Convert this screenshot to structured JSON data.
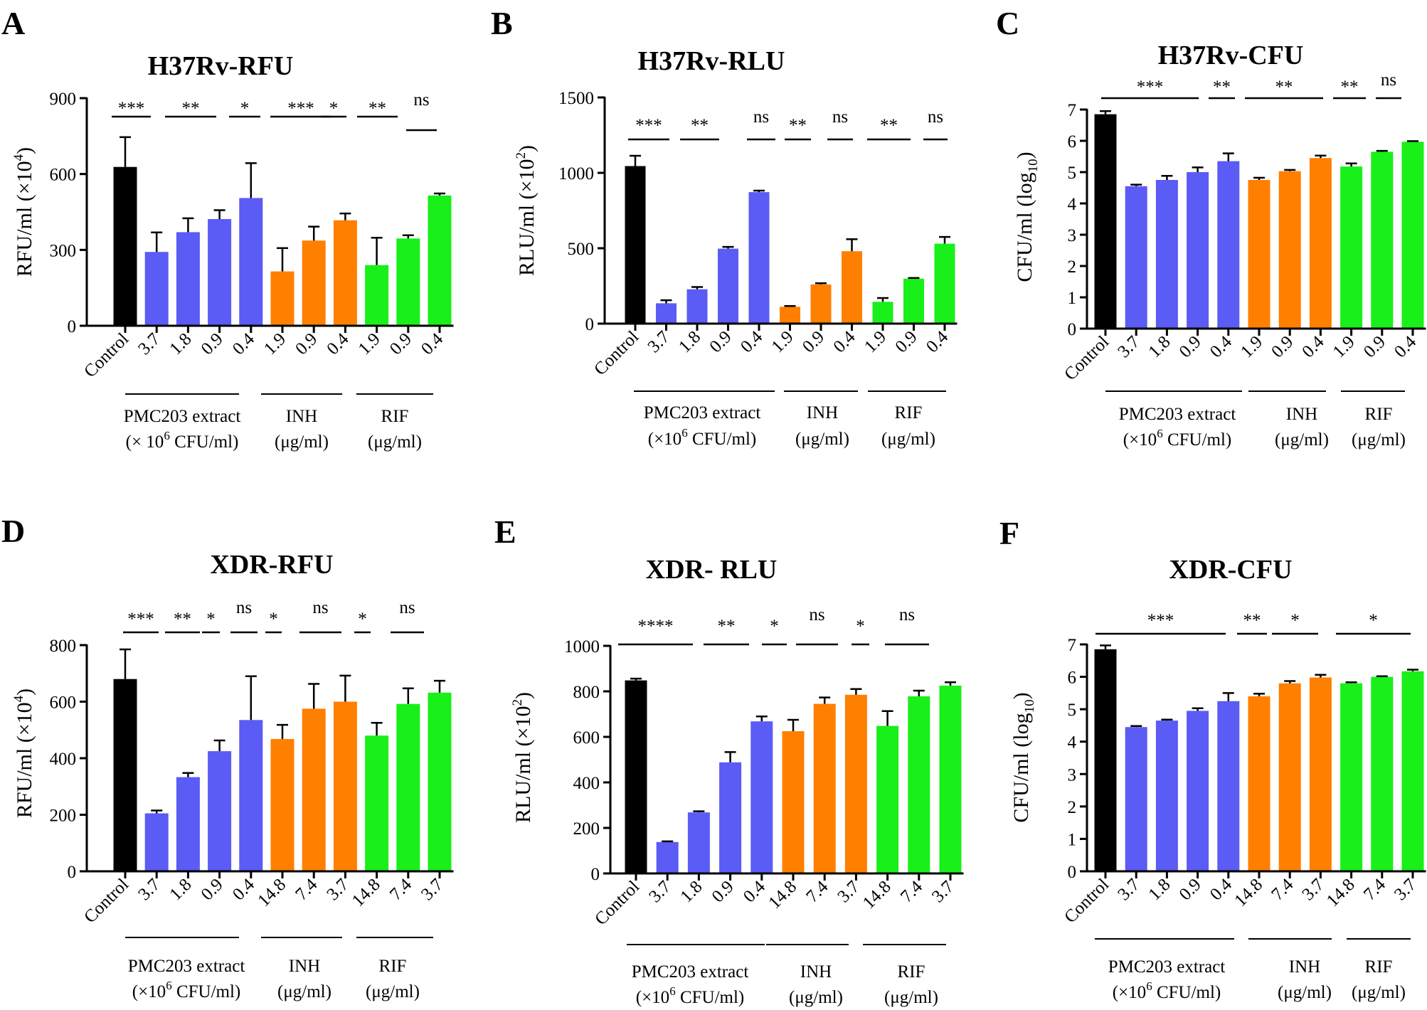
{
  "figure": {
    "colors": {
      "control": "#000000",
      "pmc203": "#5b5bf5",
      "inh": "#ff7f00",
      "rif": "#19ef19",
      "axis": "#000000"
    }
  },
  "chart_data": [
    {
      "panel": "A",
      "type": "bar",
      "title": "H37Rv-RFU",
      "ylabel": "RFU/ml (×10^4)",
      "ylabel_parts": {
        "prefix": "RFU/ml (×10",
        "sup": "4",
        "suffix": ")"
      },
      "ylim": [
        0,
        900
      ],
      "yticks": [
        0,
        300,
        600,
        900
      ],
      "categories": [
        "Control",
        "3.7",
        "1.8",
        "0.9",
        "0.4",
        "1.9",
        "0.9",
        "0.4",
        "1.9",
        "0.9",
        "0.4"
      ],
      "groups": [
        "control",
        "pmc203",
        "pmc203",
        "pmc203",
        "pmc203",
        "inh",
        "inh",
        "inh",
        "rif",
        "rif",
        "rif"
      ],
      "values": [
        628,
        292,
        370,
        422,
        505,
        215,
        337,
        417,
        240,
        345,
        515
      ],
      "errors": [
        118,
        77,
        55,
        35,
        138,
        92,
        55,
        27,
        108,
        13,
        8
      ],
      "significance": [
        {
          "label": "***",
          "from": 0,
          "to": 0
        },
        {
          "label": "**",
          "from": 1,
          "to": 1
        },
        {
          "label": "*",
          "from": 2,
          "to": 2
        },
        {
          "label": "***",
          "from": 3,
          "to": 3
        },
        {
          "label": "*",
          "from": 4,
          "to": 4
        },
        {
          "label": "**",
          "from": 5,
          "to": 5
        },
        {
          "label": "ns",
          "from": 6,
          "to": 6
        }
      ],
      "group_labels": [
        {
          "line1": "PMC203 extract",
          "line2": "(× 10^6 CFU/ml)",
          "line2_parts": {
            "prefix": "(× 10",
            "sup": "6",
            "suffix": " CFU/ml)"
          }
        },
        {
          "line1": "INH",
          "line2": "(μg/ml)"
        },
        {
          "line1": "RIF",
          "line2": "(μg/ml)"
        }
      ]
    },
    {
      "panel": "B",
      "type": "bar",
      "title": "H37Rv-RLU",
      "ylabel": "RLU/ml (×10^2)",
      "ylabel_parts": {
        "prefix": "RLU/ml (×10",
        "sup": "2",
        "suffix": ")"
      },
      "ylim": [
        0,
        1500
      ],
      "yticks": [
        0,
        500,
        1000,
        1500
      ],
      "categories": [
        "Control",
        "3.7",
        "1.8",
        "0.9",
        "0.4",
        "1.9",
        "0.9",
        "0.4",
        "1.9",
        "0.9",
        "0.4"
      ],
      "groups": [
        "control",
        "pmc203",
        "pmc203",
        "pmc203",
        "pmc203",
        "inh",
        "inh",
        "inh",
        "rif",
        "rif",
        "rif"
      ],
      "values": [
        1045,
        135,
        228,
        497,
        872,
        112,
        260,
        480,
        145,
        298,
        530
      ],
      "errors": [
        68,
        20,
        15,
        12,
        10,
        5,
        8,
        80,
        25,
        5,
        45
      ],
      "significance": [
        {
          "label": "***",
          "from": 0,
          "to": 0
        },
        {
          "label": "**",
          "from": 1,
          "to": 1
        },
        {
          "label": "ns",
          "from": 2,
          "to": 2
        },
        {
          "label": "**",
          "from": 3,
          "to": 3
        },
        {
          "label": "ns",
          "from": 4,
          "to": 4
        },
        {
          "label": "**",
          "from": 5,
          "to": 5
        },
        {
          "label": "ns",
          "from": 6,
          "to": 6
        }
      ],
      "group_labels": [
        {
          "line1": "PMC203 extract",
          "line2": "(×10^6 CFU/ml)",
          "line2_parts": {
            "prefix": "(×10",
            "sup": "6",
            "suffix": " CFU/ml)"
          }
        },
        {
          "line1": "INH",
          "line2": "(μg/ml)"
        },
        {
          "line1": "RIF",
          "line2": "(μg/ml)"
        }
      ]
    },
    {
      "panel": "C",
      "type": "bar",
      "title": "H37Rv-CFU",
      "ylabel": "CFU/ml (log10)",
      "ylabel_parts": {
        "prefix": "CFU/ml (log",
        "sub": "10",
        "suffix": ")"
      },
      "ylim": [
        0,
        7
      ],
      "yticks": [
        0,
        1,
        2,
        3,
        4,
        5,
        6,
        7
      ],
      "categories": [
        "Control",
        "3.7",
        "1.8",
        "0.9",
        "0.4",
        "1.9",
        "0.9",
        "0.4",
        "1.9",
        "0.9",
        "0.4"
      ],
      "groups": [
        "control",
        "pmc203",
        "pmc203",
        "pmc203",
        "pmc203",
        "inh",
        "inh",
        "inh",
        "rif",
        "rif",
        "rif"
      ],
      "values": [
        6.85,
        4.55,
        4.75,
        5.0,
        5.35,
        4.75,
        5.03,
        5.45,
        5.18,
        5.65,
        5.97
      ],
      "errors": [
        0.1,
        0.05,
        0.13,
        0.15,
        0.25,
        0.07,
        0.04,
        0.08,
        0.1,
        0.03,
        0.02
      ],
      "significance": [
        {
          "label": "***",
          "from": 0,
          "to": 0
        },
        {
          "label": "**",
          "from": 1,
          "to": 1
        },
        {
          "label": "**",
          "from": 2,
          "to": 2
        },
        {
          "label": "**",
          "from": 3,
          "to": 3
        },
        {
          "label": "ns",
          "from": 4,
          "to": 4
        }
      ],
      "group_labels": [
        {
          "line1": "PMC203 extract",
          "line2": "(×10^6 CFU/ml)",
          "line2_parts": {
            "prefix": "(×10",
            "sup": "6",
            "suffix": " CFU/ml)"
          }
        },
        {
          "line1": "INH",
          "line2": "(μg/ml)"
        },
        {
          "line1": "RIF",
          "line2": "(μg/ml)"
        }
      ]
    },
    {
      "panel": "D",
      "type": "bar",
      "title": "XDR-RFU",
      "ylabel": "RFU/ml (×10^4)",
      "ylabel_parts": {
        "prefix": "RFU/ml (×10",
        "sup": "4",
        "suffix": ")"
      },
      "ylim": [
        0,
        800
      ],
      "yticks": [
        0,
        200,
        400,
        600,
        800
      ],
      "categories": [
        "Control",
        "3.7",
        "1.8",
        "0.9",
        "0.4",
        "14.8",
        "7.4",
        "3.7",
        "14.8",
        "7.4",
        "3.7"
      ],
      "groups": [
        "control",
        "pmc203",
        "pmc203",
        "pmc203",
        "pmc203",
        "inh",
        "inh",
        "inh",
        "rif",
        "rif",
        "rif"
      ],
      "values": [
        680,
        205,
        333,
        425,
        535,
        468,
        575,
        600,
        480,
        592,
        632
      ],
      "errors": [
        105,
        10,
        15,
        38,
        155,
        50,
        88,
        92,
        45,
        55,
        42
      ],
      "significance": [
        {
          "label": "***",
          "from": 0,
          "to": 0
        },
        {
          "label": "**",
          "from": 1,
          "to": 1
        },
        {
          "label": "*",
          "from": 2,
          "to": 2
        },
        {
          "label": "ns",
          "from": 3,
          "to": 3
        },
        {
          "label": "*",
          "from": 4,
          "to": 4
        },
        {
          "label": "ns",
          "from": 5,
          "to": 5
        },
        {
          "label": "*",
          "from": 6,
          "to": 6
        },
        {
          "label": "ns",
          "from": 7,
          "to": 7
        }
      ],
      "group_labels": [
        {
          "line1": "PMC203 extract",
          "line2": "(×10^6 CFU/ml)",
          "line2_parts": {
            "prefix": "(×10",
            "sup": "6",
            "suffix": " CFU/ml)"
          }
        },
        {
          "line1": "INH",
          "line2": "(μg/ml)"
        },
        {
          "line1": "RIF",
          "line2": "(μg/ml)"
        }
      ]
    },
    {
      "panel": "E",
      "type": "bar",
      "title": "XDR- RLU",
      "ylabel": "RLU/ml (×10^2)",
      "ylabel_parts": {
        "prefix": "RLU/ml (×10",
        "sup": "2",
        "suffix": ")"
      },
      "ylim": [
        0,
        1000
      ],
      "yticks": [
        0,
        200,
        400,
        600,
        800,
        1000
      ],
      "categories": [
        "Control",
        "3.7",
        "1.8",
        "0.9",
        "0.4",
        "14.8",
        "7.4",
        "3.7",
        "14.8",
        "7.4",
        "3.7"
      ],
      "groups": [
        "control",
        "pmc203",
        "pmc203",
        "pmc203",
        "pmc203",
        "inh",
        "inh",
        "inh",
        "rif",
        "rif",
        "rif"
      ],
      "values": [
        848,
        138,
        268,
        488,
        668,
        625,
        745,
        785,
        648,
        778,
        825
      ],
      "errors": [
        8,
        3,
        5,
        45,
        22,
        50,
        28,
        25,
        65,
        25,
        15
      ],
      "significance": [
        {
          "label": "****",
          "from": 0,
          "to": 0
        },
        {
          "label": "**",
          "from": 1,
          "to": 1
        },
        {
          "label": "*",
          "from": 2,
          "to": 2
        },
        {
          "label": "ns",
          "from": 3,
          "to": 3
        },
        {
          "label": "*",
          "from": 4,
          "to": 4
        },
        {
          "label": "ns",
          "from": 5,
          "to": 5
        }
      ],
      "group_labels": [
        {
          "line1": "PMC203 extract",
          "line2": "(×10^6 CFU/ml)",
          "line2_parts": {
            "prefix": "(×10",
            "sup": "6",
            "suffix": " CFU/ml)"
          }
        },
        {
          "line1": "INH",
          "line2": "(μg/ml)"
        },
        {
          "line1": "RIF",
          "line2": "(μg/ml)"
        }
      ]
    },
    {
      "panel": "F",
      "type": "bar",
      "title": "XDR-CFU",
      "ylabel": "CFU/ml (log10)",
      "ylabel_parts": {
        "prefix": "CFU/ml (log",
        "sub": "10",
        "suffix": ")"
      },
      "ylim": [
        0,
        7
      ],
      "yticks": [
        0,
        1,
        2,
        3,
        4,
        5,
        6,
        7
      ],
      "categories": [
        "Control",
        "3.7",
        "1.8",
        "0.9",
        "0.4",
        "14.8",
        "7.4",
        "3.7",
        "14.8",
        "7.4",
        "3.7"
      ],
      "groups": [
        "control",
        "pmc203",
        "pmc203",
        "pmc203",
        "pmc203",
        "inh",
        "inh",
        "inh",
        "rif",
        "rif",
        "rif"
      ],
      "values": [
        6.85,
        4.45,
        4.65,
        4.95,
        5.25,
        5.4,
        5.8,
        5.98,
        5.8,
        6.0,
        6.17
      ],
      "errors": [
        0.12,
        0.03,
        0.03,
        0.08,
        0.25,
        0.08,
        0.07,
        0.08,
        0.03,
        0.02,
        0.05
      ],
      "significance": [
        {
          "label": "***",
          "from": 0,
          "to": 0
        },
        {
          "label": "**",
          "from": 1,
          "to": 1
        },
        {
          "label": "*",
          "from": 2,
          "to": 2
        },
        {
          "label": "*",
          "from": 3,
          "to": 3
        }
      ],
      "group_labels": [
        {
          "line1": "PMC203 extract",
          "line2": "(×10^6 CFU/ml)",
          "line2_parts": {
            "prefix": "(×10",
            "sup": "6",
            "suffix": " CFU/ml)"
          }
        },
        {
          "line1": "INH",
          "line2": "(μg/ml)"
        },
        {
          "line1": "RIF",
          "line2": "(μg/ml)"
        }
      ]
    }
  ]
}
